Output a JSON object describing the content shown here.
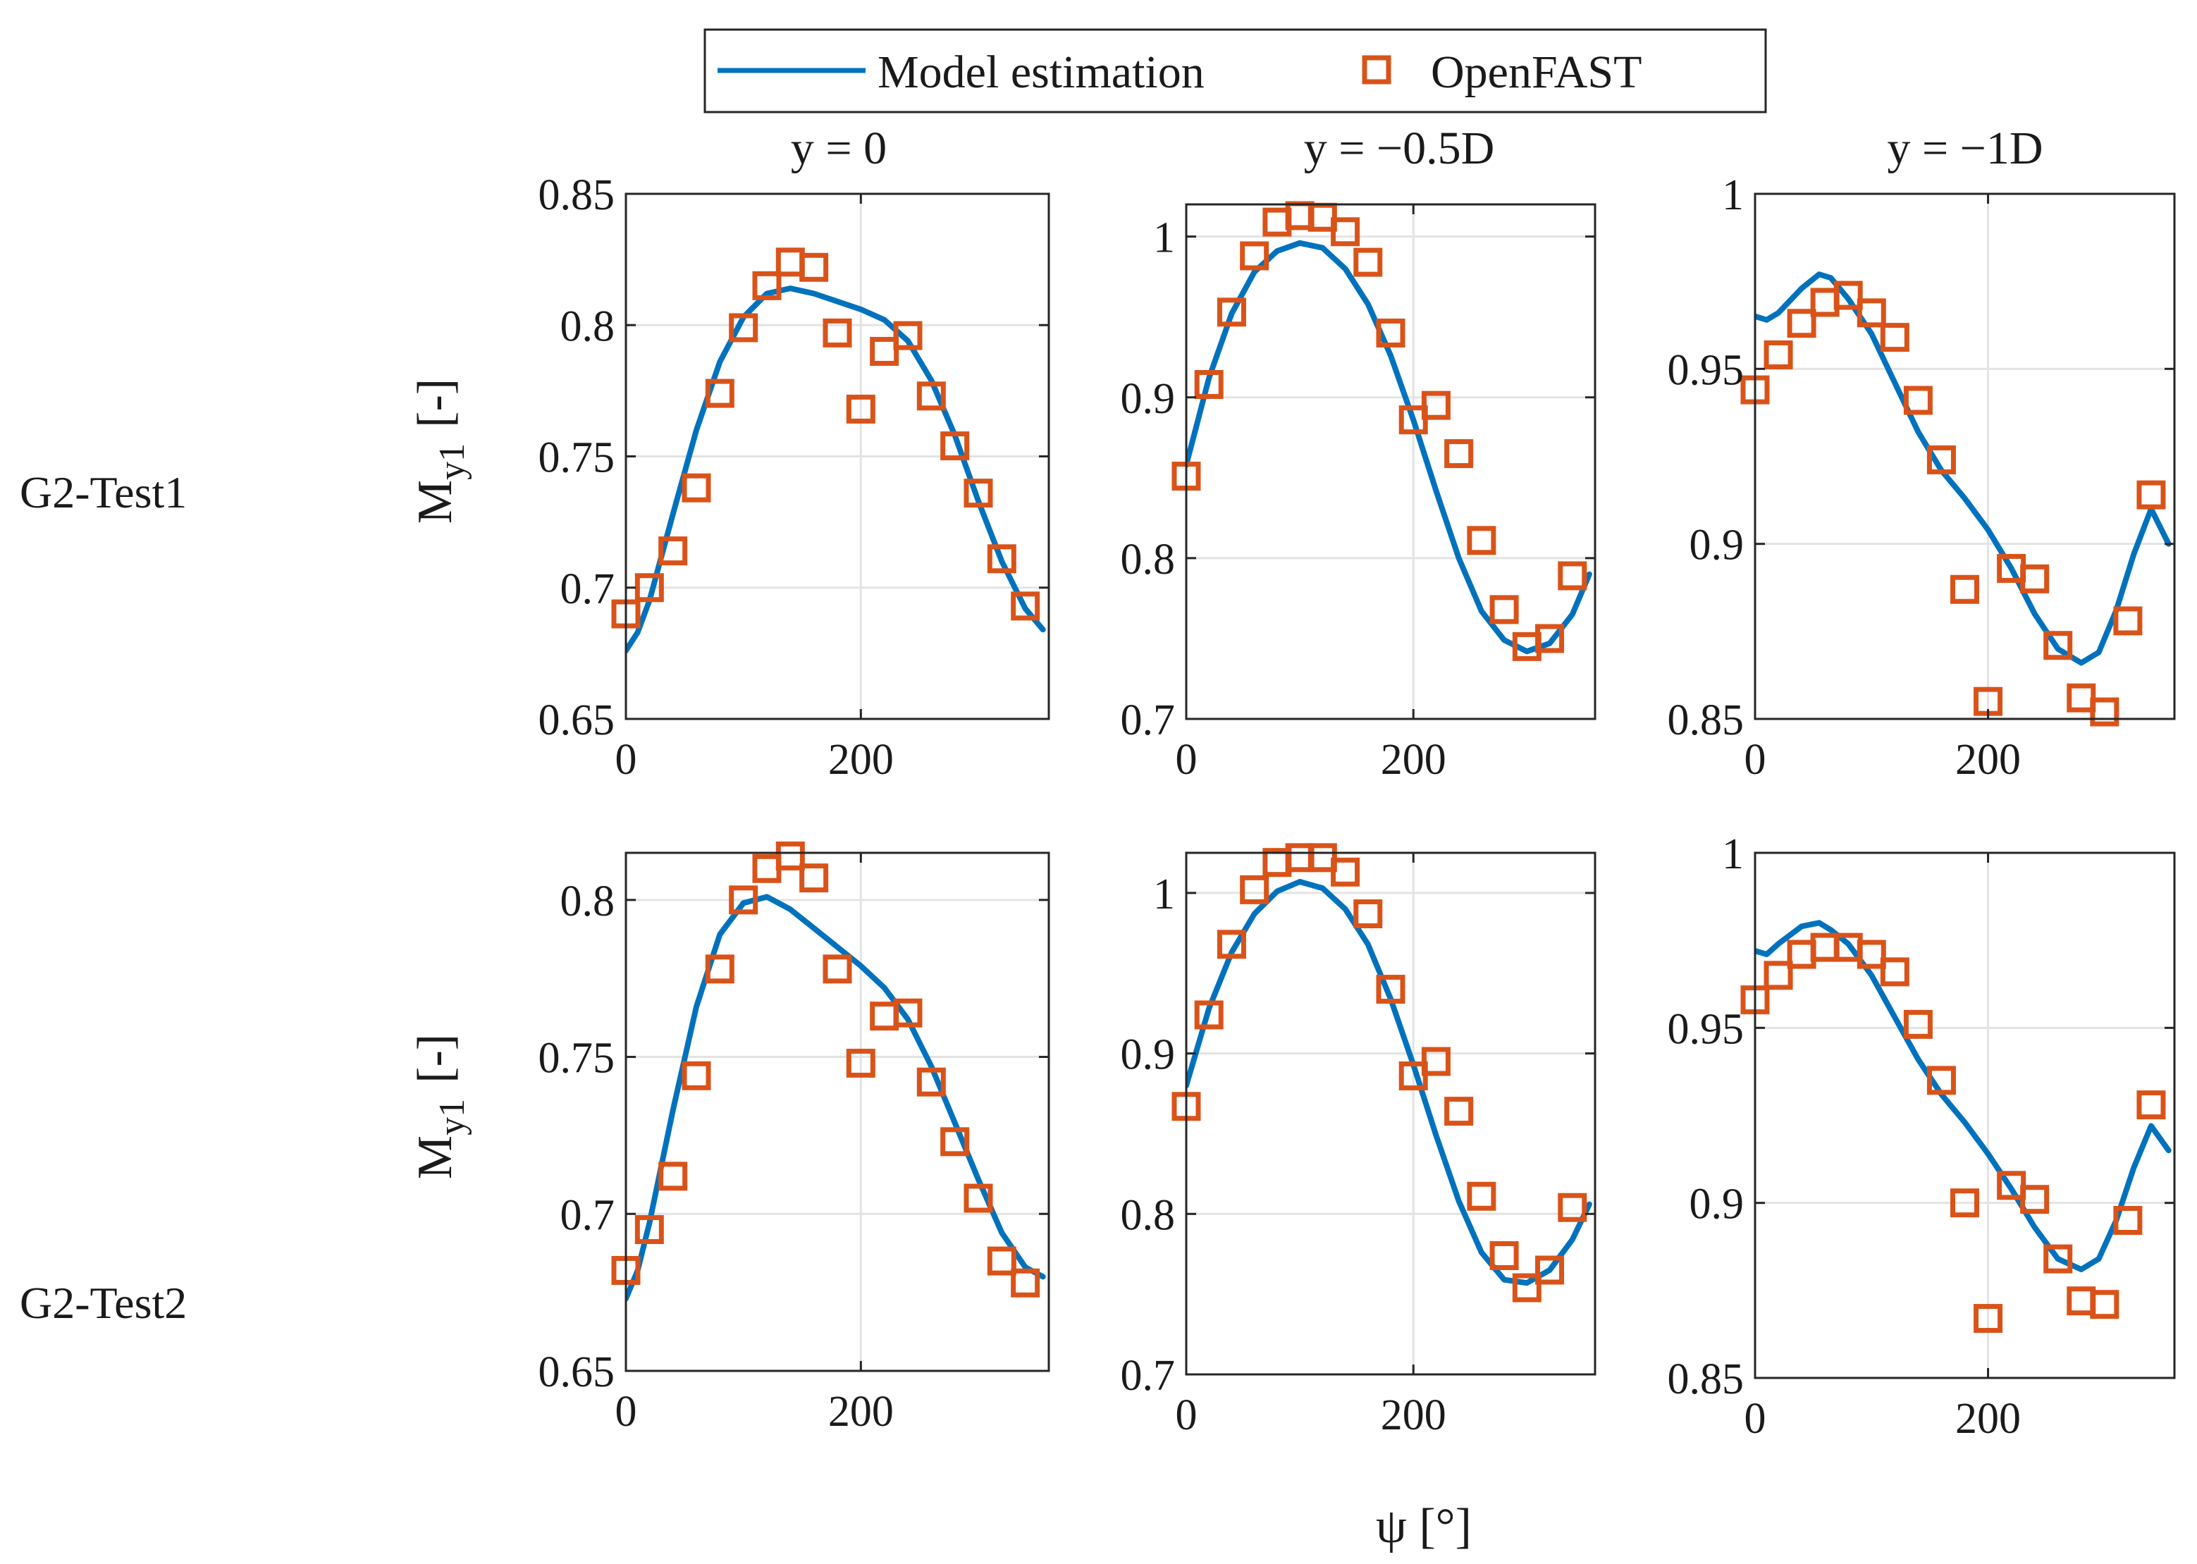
{
  "legend": {
    "items": [
      {
        "label": "Model estimation",
        "kind": "line"
      },
      {
        "label": "OpenFAST",
        "kind": "square"
      }
    ]
  },
  "colors": {
    "model": "#0072BD",
    "openfast": "#D95319",
    "grid": "#e3e3e3",
    "axis": "#262626"
  },
  "row_labels": [
    "G2-Test1",
    "G2-Test2"
  ],
  "column_titles": [
    "y = 0",
    "y = −0.5D",
    "y = −1D"
  ],
  "xlabel": "ψ [°]",
  "ylabel_main": "M",
  "ylabel_sub": "y1",
  "ylabel_unit": "[-]",
  "chart_data": [
    {
      "type": "line",
      "row": "G2-Test1",
      "title": "y = 0",
      "xlim": [
        0,
        360
      ],
      "ylim": [
        0.65,
        0.85
      ],
      "xticks": [
        0,
        200
      ],
      "xtick_labels": [
        "0",
        "200"
      ],
      "yticks": [
        0.65,
        0.7,
        0.75,
        0.8,
        0.85
      ],
      "ytick_labels": [
        "0.65",
        "0.7",
        "0.75",
        "0.8",
        "0.85"
      ],
      "grid": true,
      "series": [
        {
          "name": "Model estimation",
          "x": [
            0,
            10,
            20,
            40,
            60,
            80,
            100,
            120,
            140,
            160,
            180,
            200,
            220,
            240,
            260,
            280,
            300,
            320,
            340,
            355
          ],
          "y": [
            0.676,
            0.683,
            0.695,
            0.728,
            0.76,
            0.786,
            0.803,
            0.812,
            0.814,
            0.812,
            0.809,
            0.806,
            0.802,
            0.794,
            0.779,
            0.758,
            0.733,
            0.71,
            0.692,
            0.684
          ]
        },
        {
          "name": "OpenFAST",
          "x": [
            0,
            20,
            40,
            60,
            80,
            100,
            120,
            140,
            160,
            180,
            200,
            220,
            240,
            260,
            280,
            300,
            320,
            340
          ],
          "y": [
            0.69,
            0.7,
            0.714,
            0.738,
            0.774,
            0.799,
            0.815,
            0.824,
            0.822,
            0.797,
            0.768,
            0.79,
            0.796,
            0.773,
            0.754,
            0.736,
            0.711,
            0.693
          ]
        }
      ]
    },
    {
      "type": "line",
      "row": "G2-Test1",
      "title": "y = −0.5D",
      "xlim": [
        0,
        360
      ],
      "ylim": [
        0.7,
        1.02
      ],
      "xticks": [
        0,
        200
      ],
      "xtick_labels": [
        "0",
        "200"
      ],
      "yticks": [
        0.7,
        0.8,
        0.9,
        1.0
      ],
      "ytick_labels": [
        "0.7",
        "0.8",
        "0.9",
        "1"
      ],
      "grid": true,
      "series": [
        {
          "name": "Model estimation",
          "x": [
            0,
            20,
            40,
            60,
            80,
            100,
            120,
            140,
            160,
            180,
            200,
            220,
            240,
            260,
            280,
            300,
            320,
            340,
            355
          ],
          "y": [
            0.858,
            0.912,
            0.952,
            0.978,
            0.991,
            0.996,
            0.993,
            0.98,
            0.958,
            0.926,
            0.886,
            0.842,
            0.8,
            0.767,
            0.749,
            0.742,
            0.747,
            0.765,
            0.79
          ]
        },
        {
          "name": "OpenFAST",
          "x": [
            0,
            20,
            40,
            60,
            80,
            100,
            120,
            140,
            160,
            180,
            200,
            220,
            240,
            260,
            280,
            300,
            320,
            340
          ],
          "y": [
            0.851,
            0.908,
            0.953,
            0.988,
            1.009,
            1.013,
            1.012,
            1.003,
            0.984,
            0.94,
            0.886,
            0.895,
            0.865,
            0.811,
            0.768,
            0.745,
            0.75,
            0.789
          ]
        }
      ]
    },
    {
      "type": "line",
      "row": "G2-Test1",
      "title": "y = −1D",
      "xlim": [
        0,
        360
      ],
      "ylim": [
        0.85,
        1.0
      ],
      "xticks": [
        0,
        200
      ],
      "xtick_labels": [
        "0",
        "200"
      ],
      "yticks": [
        0.85,
        0.9,
        0.95,
        1.0
      ],
      "ytick_labels": [
        "0.85",
        "0.9",
        "0.95",
        "1"
      ],
      "grid": true,
      "series": [
        {
          "name": "Model estimation",
          "x": [
            0,
            10,
            20,
            40,
            55,
            65,
            80,
            100,
            120,
            140,
            160,
            180,
            200,
            220,
            240,
            260,
            280,
            295,
            310,
            325,
            340,
            355
          ],
          "y": [
            0.965,
            0.964,
            0.966,
            0.973,
            0.977,
            0.976,
            0.97,
            0.96,
            0.946,
            0.932,
            0.921,
            0.913,
            0.904,
            0.893,
            0.88,
            0.87,
            0.866,
            0.869,
            0.881,
            0.897,
            0.91,
            0.9
          ]
        },
        {
          "name": "OpenFAST",
          "x": [
            0,
            20,
            40,
            60,
            80,
            100,
            120,
            140,
            160,
            180,
            200,
            220,
            240,
            260,
            280,
            300,
            320,
            340
          ],
          "y": [
            0.944,
            0.954,
            0.963,
            0.969,
            0.971,
            0.966,
            0.959,
            0.941,
            0.924,
            0.887,
            0.855,
            0.893,
            0.89,
            0.871,
            0.856,
            0.852,
            0.878,
            0.914
          ]
        }
      ]
    },
    {
      "type": "line",
      "row": "G2-Test2",
      "title": "",
      "xlim": [
        0,
        360
      ],
      "ylim": [
        0.65,
        0.815
      ],
      "xticks": [
        0,
        200
      ],
      "xtick_labels": [
        "0",
        "200"
      ],
      "yticks": [
        0.65,
        0.7,
        0.75,
        0.8
      ],
      "ytick_labels": [
        "0.65",
        "0.7",
        "0.75",
        "0.8"
      ],
      "grid": true,
      "series": [
        {
          "name": "Model estimation",
          "x": [
            0,
            10,
            20,
            40,
            60,
            80,
            100,
            120,
            140,
            160,
            180,
            200,
            220,
            240,
            260,
            280,
            300,
            320,
            340,
            355
          ],
          "y": [
            0.673,
            0.682,
            0.697,
            0.733,
            0.766,
            0.789,
            0.799,
            0.801,
            0.797,
            0.791,
            0.785,
            0.779,
            0.772,
            0.762,
            0.747,
            0.729,
            0.711,
            0.694,
            0.683,
            0.68
          ]
        },
        {
          "name": "OpenFAST",
          "x": [
            0,
            20,
            40,
            60,
            80,
            100,
            120,
            140,
            160,
            180,
            200,
            220,
            240,
            260,
            280,
            300,
            320,
            340
          ],
          "y": [
            0.682,
            0.695,
            0.712,
            0.744,
            0.778,
            0.8,
            0.81,
            0.814,
            0.807,
            0.778,
            0.748,
            0.763,
            0.764,
            0.742,
            0.723,
            0.705,
            0.685,
            0.678
          ]
        }
      ]
    },
    {
      "type": "line",
      "row": "G2-Test2",
      "title": "",
      "xlim": [
        0,
        360
      ],
      "ylim": [
        0.7,
        1.025
      ],
      "xticks": [
        0,
        200
      ],
      "xtick_labels": [
        "0",
        "200"
      ],
      "yticks": [
        0.7,
        0.8,
        0.9,
        1.0
      ],
      "ytick_labels": [
        "0.7",
        "0.8",
        "0.9",
        "1"
      ],
      "grid": true,
      "series": [
        {
          "name": "Model estimation",
          "x": [
            0,
            20,
            40,
            60,
            80,
            100,
            120,
            140,
            160,
            180,
            200,
            220,
            240,
            260,
            280,
            300,
            320,
            340,
            355
          ],
          "y": [
            0.88,
            0.928,
            0.963,
            0.987,
            1.001,
            1.007,
            1.003,
            0.99,
            0.968,
            0.934,
            0.893,
            0.849,
            0.808,
            0.776,
            0.759,
            0.757,
            0.765,
            0.784,
            0.806
          ]
        },
        {
          "name": "OpenFAST",
          "x": [
            0,
            20,
            40,
            60,
            80,
            100,
            120,
            140,
            160,
            180,
            200,
            220,
            240,
            260,
            280,
            300,
            320,
            340
          ],
          "y": [
            0.867,
            0.924,
            0.968,
            1.002,
            1.019,
            1.022,
            1.022,
            1.013,
            0.987,
            0.94,
            0.886,
            0.895,
            0.864,
            0.811,
            0.774,
            0.754,
            0.765,
            0.804
          ]
        }
      ]
    },
    {
      "type": "line",
      "row": "G2-Test2",
      "title": "",
      "xlim": [
        0,
        360
      ],
      "ylim": [
        0.85,
        1.0
      ],
      "xticks": [
        0,
        200
      ],
      "xtick_labels": [
        "0",
        "200"
      ],
      "yticks": [
        0.85,
        0.9,
        0.95,
        1.0
      ],
      "ytick_labels": [
        "0.85",
        "0.9",
        "0.95",
        "1"
      ],
      "grid": true,
      "series": [
        {
          "name": "Model estimation",
          "x": [
            0,
            10,
            20,
            40,
            55,
            65,
            80,
            100,
            120,
            140,
            160,
            180,
            200,
            220,
            240,
            260,
            280,
            295,
            310,
            325,
            340,
            355
          ],
          "y": [
            0.972,
            0.971,
            0.974,
            0.979,
            0.98,
            0.978,
            0.974,
            0.965,
            0.953,
            0.941,
            0.931,
            0.923,
            0.914,
            0.904,
            0.893,
            0.884,
            0.881,
            0.884,
            0.895,
            0.91,
            0.922,
            0.915
          ]
        },
        {
          "name": "OpenFAST",
          "x": [
            0,
            20,
            40,
            60,
            80,
            100,
            120,
            140,
            160,
            180,
            200,
            220,
            240,
            260,
            280,
            300,
            320,
            340
          ],
          "y": [
            0.958,
            0.965,
            0.971,
            0.973,
            0.973,
            0.971,
            0.966,
            0.951,
            0.935,
            0.9,
            0.867,
            0.905,
            0.901,
            0.884,
            0.872,
            0.871,
            0.895,
            0.928
          ]
        }
      ]
    }
  ]
}
